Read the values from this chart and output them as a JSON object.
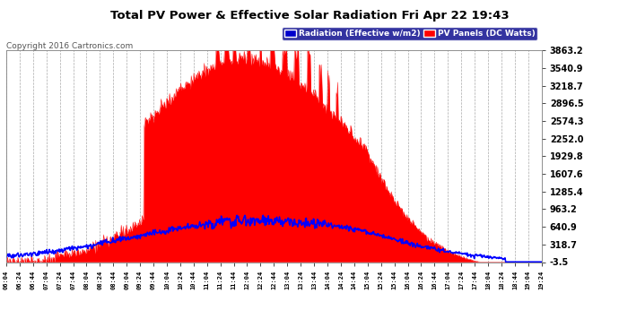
{
  "title": "Total PV Power & Effective Solar Radiation Fri Apr 22 19:43",
  "copyright": "Copyright 2016 Cartronics.com",
  "legend_radiation": "Radiation (Effective w/m2)",
  "legend_pv": "PV Panels (DC Watts)",
  "bg_color": "#ffffff",
  "plot_bg_color": "#ffffff",
  "grid_color": "#aaaaaa",
  "title_color": "#000000",
  "copyright_color": "#555555",
  "ylim": [
    -3.5,
    3863.2
  ],
  "yticks": [
    -3.5,
    318.7,
    640.9,
    963.2,
    1285.4,
    1607.6,
    1929.8,
    2252.0,
    2574.3,
    2896.5,
    3218.7,
    3540.9,
    3863.2
  ],
  "xtick_labels": [
    "06:04",
    "06:24",
    "06:44",
    "07:04",
    "07:24",
    "07:44",
    "08:04",
    "08:24",
    "08:44",
    "09:04",
    "09:24",
    "09:44",
    "10:04",
    "10:24",
    "10:44",
    "11:04",
    "11:24",
    "11:44",
    "12:04",
    "12:24",
    "12:44",
    "13:04",
    "13:24",
    "13:44",
    "14:04",
    "14:24",
    "14:44",
    "15:04",
    "15:24",
    "15:44",
    "16:04",
    "16:24",
    "16:44",
    "17:04",
    "17:24",
    "17:44",
    "18:04",
    "18:24",
    "18:44",
    "19:04",
    "19:24"
  ],
  "pv_color": "#ff0000",
  "radiation_color": "#0000ff"
}
